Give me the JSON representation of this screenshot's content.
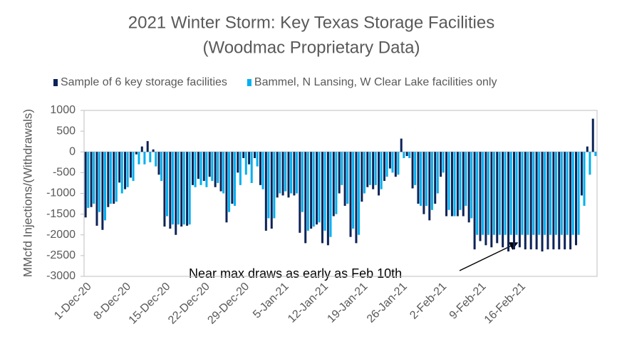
{
  "chart_data": {
    "type": "bar",
    "title": "2021 Winter Storm: Key Texas Storage Facilities",
    "subtitle": "(Woodmac Proprietary Data)",
    "y_label": "MMcfd  Injections/(Withdrawals)",
    "annotation": "Near max draws as early as Feb 10th",
    "categories": [
      "1-Dec-20",
      null,
      null,
      null,
      null,
      null,
      null,
      "8-Dec-20",
      null,
      null,
      null,
      null,
      null,
      null,
      "15-Dec-20",
      null,
      null,
      null,
      null,
      null,
      null,
      "22-Dec-20",
      null,
      null,
      null,
      null,
      null,
      null,
      "29-Dec-20",
      null,
      null,
      null,
      null,
      null,
      null,
      "5-Jan-21",
      null,
      null,
      null,
      null,
      null,
      null,
      "12-Jan-21",
      null,
      null,
      null,
      null,
      null,
      null,
      "19-Jan-21",
      null,
      null,
      null,
      null,
      null,
      null,
      "26-Jan-21",
      null,
      null,
      null,
      null,
      null,
      null,
      "2-Feb-21",
      null,
      null,
      null,
      null,
      null,
      null,
      "9-Feb-21",
      null,
      null,
      null,
      null,
      null,
      null,
      "16-Feb-21",
      null,
      null,
      null,
      null,
      null,
      null,
      null,
      null,
      null,
      null,
      null,
      null,
      null
    ],
    "series": [
      {
        "name": "Sample of 6 key storage facilities",
        "color": "#0d2357",
        "values": [
          -1580,
          -1330,
          -1780,
          -1880,
          -1330,
          -1250,
          -740,
          -900,
          -620,
          -60,
          130,
          260,
          60,
          -550,
          -1800,
          -1850,
          -2000,
          -1800,
          -1780,
          -800,
          -650,
          -700,
          -600,
          -850,
          -950,
          -1700,
          -1250,
          -500,
          -150,
          -300,
          -150,
          -800,
          -1900,
          -1850,
          -1100,
          -1050,
          -1100,
          -1050,
          -1950,
          -2200,
          -1850,
          -1750,
          -2200,
          -2250,
          -1550,
          -1000,
          -1300,
          -2050,
          -2200,
          -1200,
          -850,
          -900,
          -1050,
          -700,
          -400,
          -600,
          320,
          -100,
          -880,
          -1250,
          -1500,
          -1650,
          -1250,
          -600,
          -1550,
          -1550,
          -1550,
          -1550,
          -1700,
          -2350,
          -2150,
          -2250,
          -2300,
          -2200,
          -2300,
          -2400,
          -2350,
          -2300,
          -2350,
          -2350,
          -2350,
          -2400,
          -2350,
          -2350,
          -2350,
          -2350,
          -2350,
          -2250,
          -1050,
          130,
          800
        ]
      },
      {
        "name": "Bammel, N Lansing, W Clear Lake facilities only",
        "color": "#00b0f0",
        "values": [
          -1350,
          -1250,
          -1450,
          -1650,
          -1250,
          -1200,
          -1000,
          -850,
          -700,
          -300,
          -300,
          -250,
          -350,
          -700,
          -1550,
          -1750,
          -1750,
          -1750,
          -1750,
          -850,
          -800,
          -850,
          -700,
          -750,
          -1000,
          -1450,
          -1300,
          -800,
          -550,
          -750,
          -350,
          -900,
          -1600,
          -1600,
          -1000,
          -950,
          -1000,
          -1000,
          -1450,
          -1900,
          -1800,
          -1700,
          -1900,
          -2050,
          -1500,
          -800,
          -1250,
          -1850,
          -2000,
          -1000,
          -800,
          -800,
          -900,
          -600,
          -500,
          -550,
          -150,
          -150,
          -800,
          -1300,
          -1300,
          -1400,
          -1000,
          -500,
          -1400,
          -1550,
          -1400,
          -1300,
          -1600,
          -2000,
          -2000,
          -2000,
          -2000,
          -2000,
          -2000,
          -2000,
          -2000,
          -2000,
          -2000,
          -2000,
          -2000,
          -2000,
          -2000,
          -2000,
          -2000,
          -2000,
          -2000,
          -2000,
          -1300,
          -550,
          -100
        ]
      }
    ],
    "ylim": [
      -3000,
      1000
    ],
    "yticks": [
      -3000,
      -2500,
      -2000,
      -1500,
      -1000,
      -500,
      0,
      500,
      1000
    ],
    "grid": false
  }
}
